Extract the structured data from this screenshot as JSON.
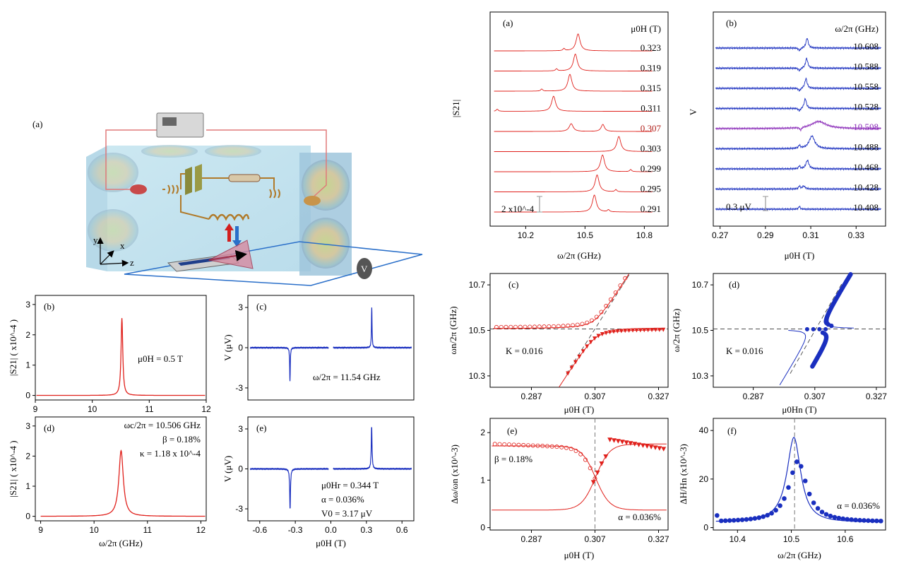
{
  "schematic": {
    "panel_label": "(a)",
    "axis_y": "y",
    "axis_x": "x",
    "axis_z": "z",
    "voltmeter": "V"
  },
  "chart_data": [
    {
      "id": "b",
      "type": "line",
      "panel_label": "(b)",
      "annotation": "μ0H = 0.5 T",
      "xlabel": "",
      "ylabel": "|S21| ( x10^-4 )",
      "xlim": [
        9,
        12
      ],
      "ylim": [
        -0.15,
        3.3
      ],
      "xticks": [
        "9",
        "10",
        "11",
        "12"
      ],
      "yticks": [
        "0",
        "1",
        "2",
        "3"
      ],
      "series": [
        {
          "peak_x": 10.52,
          "peak_y": 2.55,
          "width": 0.018,
          "baseline": 0.0,
          "color": "#e0201b"
        }
      ]
    },
    {
      "id": "c",
      "type": "line",
      "panel_label": "(c)",
      "annotation": "ω/2π = 11.54 GHz",
      "xlabel": "",
      "ylabel": "V (μV)",
      "xlim": [
        -0.7,
        0.7
      ],
      "ylim": [
        -3.9,
        3.9
      ],
      "xticks": [],
      "yticks": [
        "-3",
        "0",
        "3"
      ],
      "series": [
        {
          "peaks": [
            [
              -0.345,
              -2.5
            ],
            [
              0.345,
              3.0
            ]
          ],
          "width": 0.003,
          "color": "#1a2fbf"
        }
      ]
    },
    {
      "id": "d",
      "type": "line",
      "panel_label": "(d)",
      "annotation_lines": [
        "ωc/2π = 10.506 GHz",
        "β = 0.18%",
        "κ = 1.18 x 10^-4"
      ],
      "xlabel": "ω/2π (GHz)",
      "ylabel": "|S21| ( x10^-4 )",
      "xlim": [
        8.9,
        12.1
      ],
      "ylim": [
        -0.15,
        3.3
      ],
      "xticks": [
        "9",
        "10",
        "11",
        "12"
      ],
      "yticks": [
        "0",
        "1",
        "2",
        "3"
      ],
      "series": [
        {
          "peak_x": 10.506,
          "peak_y": 2.18,
          "width": 0.05,
          "baseline": 0.0,
          "color": "#e0201b"
        }
      ]
    },
    {
      "id": "e",
      "type": "line",
      "panel_label": "(e)",
      "annotation_lines": [
        "μ0Hr = 0.344 T",
        "α = 0.036%",
        "V0 = 3.17 μV"
      ],
      "xlabel": "μ0H (T)",
      "ylabel": "V (μV)",
      "xlim": [
        -0.7,
        0.7
      ],
      "ylim": [
        -3.9,
        3.9
      ],
      "xticks": [
        "-0.6",
        "-0.3",
        "0.0",
        "0.3",
        "0.6"
      ],
      "yticks": [
        "-3",
        "0",
        "3"
      ],
      "series": [
        {
          "peaks": [
            [
              -0.344,
              -3.0
            ],
            [
              0.344,
              3.17
            ]
          ],
          "width": 0.004,
          "color": "#1a2fbf"
        }
      ]
    },
    {
      "id": "ra",
      "type": "line",
      "panel_label": "(a)",
      "header": "μ0H (T)",
      "xlabel": "ω/2π (GHz)",
      "ylabel": "|S21|",
      "scale_bar": "2 x10^-4",
      "xlim": [
        10.02,
        10.92
      ],
      "xticks": [
        "10.2",
        "10.5",
        "10.8"
      ],
      "traces": [
        "0.323",
        "0.319",
        "0.315",
        "0.311",
        "0.307",
        "0.303",
        "0.299",
        "0.295",
        "0.291"
      ],
      "highlight": "0.307",
      "color": "#e0201b"
    },
    {
      "id": "rb",
      "type": "line",
      "panel_label": "(b)",
      "header": "ω/2π  (GHz)",
      "xlabel": "μ0H (T)",
      "ylabel": "V",
      "scale_bar": "0.3 μV",
      "xlim": [
        0.267,
        0.343
      ],
      "xticks": [
        "0.27",
        "0.29",
        "0.31",
        "0.33"
      ],
      "traces": [
        "10.608",
        "10.588",
        "10.558",
        "10.528",
        "10.508",
        "10.488",
        "10.468",
        "10.428",
        "10.408"
      ],
      "highlight": "10.508",
      "color": "#1a2fbf",
      "highlight_color": "#8a2bb8"
    },
    {
      "id": "rc",
      "type": "scatter",
      "panel_label": "(c)",
      "annotation": "K = 0.016",
      "xlabel": "μ0H (T)",
      "ylabel": "ωn/2π (GHz)",
      "xlim": [
        0.274,
        0.33
      ],
      "ylim": [
        10.25,
        10.75
      ],
      "xticks": [
        "0.287",
        "0.307",
        "0.327"
      ],
      "yticks": [
        "10.3",
        "10.5",
        "10.7"
      ],
      "omega_c": 10.506,
      "color": "#e0201b"
    },
    {
      "id": "rd",
      "type": "scatter",
      "panel_label": "(d)",
      "annotation": "K = 0.016",
      "xlabel": "μ0Hn (T)",
      "ylabel": "ω/2π (GHz)",
      "xlim": [
        0.274,
        0.33
      ],
      "ylim": [
        10.25,
        10.75
      ],
      "xticks": [
        "0.287",
        "0.307",
        "0.327"
      ],
      "yticks": [
        "10.3",
        "10.5",
        "10.7"
      ],
      "omega_c": 10.506,
      "color": "#1a2fbf"
    },
    {
      "id": "re",
      "type": "scatter",
      "panel_label": "(e)",
      "annotation_left": "β = 0.18%",
      "annotation_right": "α = 0.036%",
      "xlabel": "μ0H (T)",
      "ylabel": "Δω/ωn (x10^-3)",
      "xlim": [
        0.274,
        0.33
      ],
      "ylim": [
        -0.05,
        2.3
      ],
      "xticks": [
        "0.287",
        "0.307",
        "0.327"
      ],
      "yticks": [
        "0",
        "1",
        "2"
      ],
      "crossing": 0.307,
      "color": "#e0201b"
    },
    {
      "id": "rf",
      "type": "scatter",
      "panel_label": "(f)",
      "annotation": "α = 0.036%",
      "xlabel": "ω/2π (GHz)",
      "ylabel": "ΔH/Hn (x10^-3)",
      "xlim": [
        10.355,
        10.675
      ],
      "ylim": [
        -1,
        45
      ],
      "xticks": [
        "10.4",
        "10.5",
        "10.6"
      ],
      "yticks": [
        "0",
        "20",
        "40"
      ],
      "crossing": 10.506,
      "color": "#1a2fbf"
    }
  ]
}
